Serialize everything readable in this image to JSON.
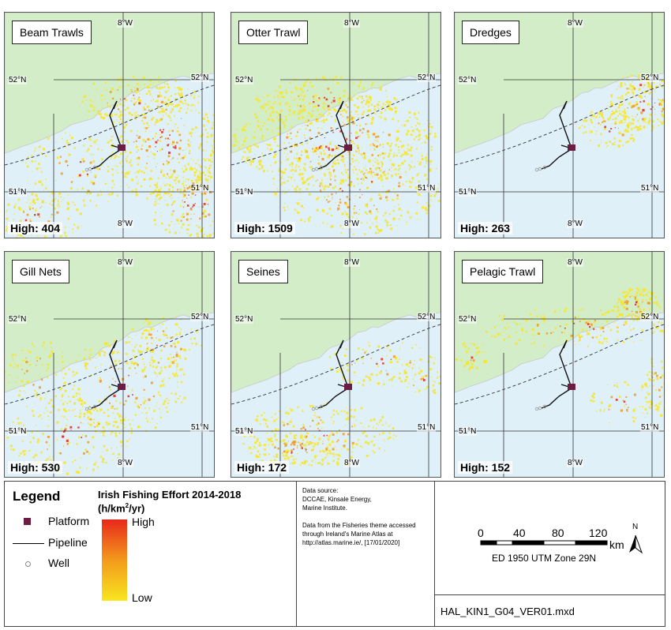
{
  "panels": [
    {
      "title": "Beam Trawls",
      "high": "High: 404"
    },
    {
      "title": "Otter Trawl",
      "high": "High: 1509"
    },
    {
      "title": "Dredges",
      "high": "High: 263"
    },
    {
      "title": "Gill Nets",
      "high": "High: 530"
    },
    {
      "title": "Seines",
      "high": "High: 172"
    },
    {
      "title": "Pelagic Trawl",
      "high": "High: 152"
    }
  ],
  "grid_labels": {
    "lon": "8°W",
    "lat_north": "52°N",
    "lat_south": "51°N"
  },
  "legend": {
    "title": "Legend",
    "platform": "Platform",
    "pipeline": "Pipeline",
    "well": "Well",
    "effort_title": "Irish Fishing Effort 2014-2018",
    "effort_unit_prefix": "(h/km",
    "effort_unit_sup": "2",
    "effort_unit_suffix": "/yr)",
    "high": "High",
    "low": "Low"
  },
  "source": {
    "line1": "Data source:",
    "line2": "DCCAE, Kinsale Energy,",
    "line3": "Marine Institute.",
    "line4": "Data from the Fisheries theme accessed",
    "line5": "through Ireland's Marine Atlas at",
    "line6": "http://atlas.marine.ie/, [17/01/2020]"
  },
  "scale": {
    "ticks": [
      "0",
      "40",
      "80",
      "120"
    ],
    "unit": "km",
    "crs": "ED 1950 UTM Zone 29N",
    "north": "N"
  },
  "mxd": "HAL_KIN1_G04_VER01.mxd",
  "colors": {
    "land": "#d3edc8",
    "sea": "#dff0f8",
    "platform": "#6b1d43",
    "effort_high": "#e8281c",
    "effort_mid": "#f39a1c",
    "effort_low": "#f8e61e"
  }
}
